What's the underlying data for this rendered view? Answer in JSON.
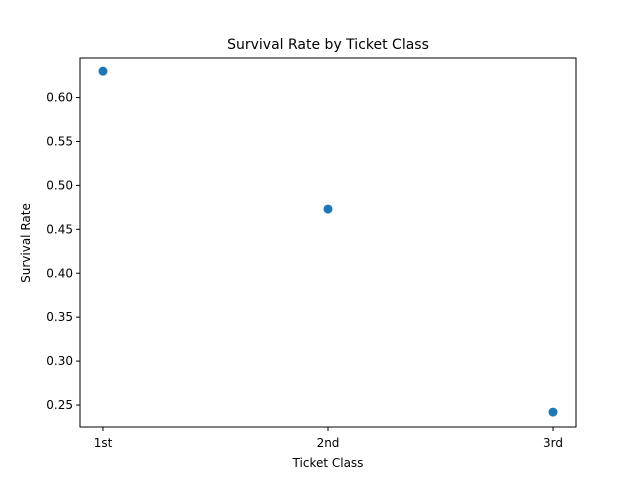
{
  "chart_data": {
    "type": "scatter",
    "title": "Survival Rate by Ticket Class",
    "xlabel": "Ticket Class",
    "ylabel": "Survival Rate",
    "categories": [
      "1st",
      "2nd",
      "3rd"
    ],
    "values": [
      0.63,
      0.473,
      0.242
    ],
    "ylim": [
      0.225,
      0.645
    ],
    "yticks": [
      "0.25",
      "0.30",
      "0.35",
      "0.40",
      "0.45",
      "0.50",
      "0.55",
      "0.60"
    ],
    "grid": false,
    "legend": "none",
    "color": "#1f77b4"
  }
}
